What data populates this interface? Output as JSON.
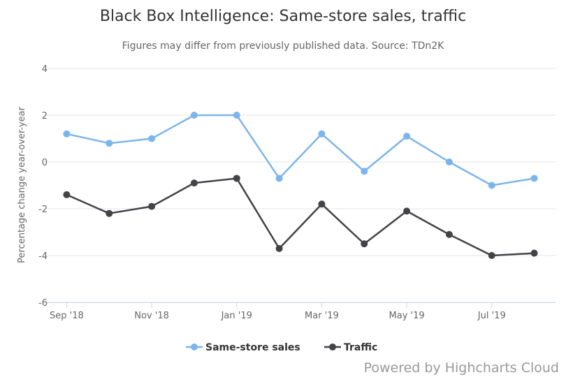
{
  "chart_data": {
    "type": "line",
    "title": "Black Box Intelligence: Same-store sales, traffic",
    "subtitle": "Figures may differ from previously published data. Source: TDn2K",
    "ylabel": "Percentage change year-over-year",
    "xlabel": "",
    "ylim": [
      -6,
      4
    ],
    "yticks": [
      -6,
      -4,
      -2,
      0,
      2,
      4
    ],
    "grid": true,
    "legend_position": "bottom-center",
    "categories": [
      "Sep '18",
      "Oct '18",
      "Nov '18",
      "Dec '18",
      "Jan '19",
      "Feb '19",
      "Mar '19",
      "Apr '19",
      "May '19",
      "Jun '19",
      "Jul '19",
      "Aug '19"
    ],
    "xtick_labels": [
      "Sep '18",
      "",
      "Nov '18",
      "",
      "Jan '19",
      "",
      "Mar '19",
      "",
      "May '19",
      "",
      "Jul '19",
      ""
    ],
    "series": [
      {
        "name": "Same-store sales",
        "color": "#7cb5ec",
        "values": [
          1.2,
          0.8,
          1.0,
          2.0,
          2.0,
          -0.7,
          1.2,
          -0.4,
          1.1,
          0.0,
          -1.0,
          -0.7
        ]
      },
      {
        "name": "Traffic",
        "color": "#434348",
        "values": [
          -1.4,
          -2.2,
          -1.9,
          -0.9,
          -0.7,
          -3.7,
          -1.8,
          -3.5,
          -2.1,
          -3.1,
          -4.0,
          -3.9
        ]
      }
    ]
  },
  "credits": "Powered by Highcharts Cloud"
}
